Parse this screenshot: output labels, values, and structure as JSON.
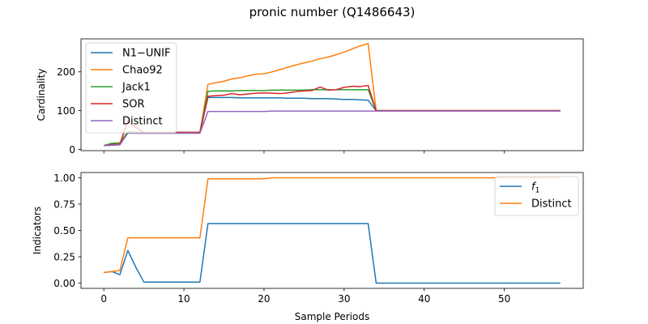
{
  "figure_title": "pronic number (Q1486643)",
  "chart_data": [
    {
      "type": "line",
      "ylabel": "Cardinality",
      "xlabel": "",
      "xlim": [
        -2.85,
        59.85
      ],
      "ylim": [
        -3,
        285
      ],
      "xticks": [
        0,
        10,
        20,
        30,
        40,
        50
      ],
      "xtick_labels_shown": false,
      "yticks": [
        0,
        100,
        200
      ],
      "ytick_labels": [
        "0",
        "100",
        "200"
      ],
      "legend_position": "upper left",
      "series": [
        {
          "name": "N1−UNIF",
          "color": "#1f77b4",
          "x": [
            0,
            1,
            2,
            3,
            4,
            5,
            6,
            7,
            8,
            9,
            10,
            11,
            12,
            13,
            14,
            15,
            16,
            17,
            18,
            19,
            20,
            21,
            22,
            23,
            24,
            25,
            26,
            27,
            28,
            29,
            30,
            31,
            32,
            33,
            34,
            35,
            36,
            37,
            38,
            39,
            40,
            41,
            42,
            43,
            44,
            45,
            46,
            47,
            48,
            49,
            50,
            51,
            52,
            53,
            54,
            55,
            56,
            57
          ],
          "y": [
            10,
            11,
            12,
            44,
            44,
            44,
            44,
            44,
            44,
            44,
            44,
            44,
            44,
            134,
            134,
            134,
            134,
            133,
            133,
            133,
            133,
            133,
            133,
            132,
            132,
            132,
            131,
            131,
            131,
            130,
            129,
            129,
            128,
            127,
            100,
            100,
            100,
            100,
            100,
            100,
            100,
            100,
            100,
            100,
            100,
            100,
            100,
            100,
            100,
            100,
            100,
            100,
            100,
            100,
            100,
            100,
            100,
            100
          ]
        },
        {
          "name": "Chao92",
          "color": "#ff7f0e",
          "x": [
            0,
            1,
            2,
            3,
            4,
            5,
            6,
            7,
            8,
            9,
            10,
            11,
            12,
            13,
            14,
            15,
            16,
            17,
            18,
            19,
            20,
            21,
            22,
            23,
            24,
            25,
            26,
            27,
            28,
            29,
            30,
            31,
            32,
            33,
            34,
            35,
            36,
            37,
            38,
            39,
            40,
            41,
            42,
            43,
            44,
            45,
            46,
            47,
            48,
            49,
            50,
            51,
            52,
            53,
            54,
            55,
            56,
            57
          ],
          "y": [
            10,
            12,
            14,
            75,
            60,
            44,
            44,
            44,
            44,
            44,
            44,
            44,
            44,
            168,
            172,
            176,
            182,
            185,
            190,
            194,
            195,
            200,
            206,
            212,
            218,
            223,
            228,
            234,
            238,
            244,
            251,
            259,
            267,
            273,
            100,
            100,
            100,
            100,
            100,
            100,
            100,
            100,
            100,
            100,
            100,
            100,
            100,
            100,
            100,
            100,
            100,
            100,
            100,
            100,
            100,
            100,
            100,
            100
          ]
        },
        {
          "name": "Jack1",
          "color": "#2ca02c",
          "x": [
            0,
            1,
            2,
            3,
            4,
            5,
            6,
            7,
            8,
            9,
            10,
            11,
            12,
            13,
            14,
            15,
            16,
            17,
            18,
            19,
            20,
            21,
            22,
            23,
            24,
            25,
            26,
            27,
            28,
            29,
            30,
            31,
            32,
            33,
            34,
            35,
            36,
            37,
            38,
            39,
            40,
            41,
            42,
            43,
            44,
            45,
            46,
            47,
            48,
            49,
            50,
            51,
            52,
            53,
            54,
            55,
            56,
            57
          ],
          "y": [
            10,
            16,
            17,
            46,
            44,
            44,
            44,
            44,
            44,
            44,
            44,
            44,
            44,
            150,
            151,
            151,
            151,
            152,
            152,
            152,
            152,
            153,
            153,
            153,
            153,
            153,
            154,
            154,
            154,
            154,
            154,
            154,
            154,
            154,
            100,
            100,
            100,
            100,
            100,
            100,
            100,
            100,
            100,
            100,
            100,
            100,
            100,
            100,
            100,
            100,
            100,
            100,
            100,
            100,
            100,
            100,
            100,
            100
          ]
        },
        {
          "name": "SOR",
          "color": "#d62728",
          "x": [
            0,
            1,
            2,
            3,
            4,
            5,
            6,
            7,
            8,
            9,
            10,
            11,
            12,
            13,
            14,
            15,
            16,
            17,
            18,
            19,
            20,
            21,
            22,
            23,
            24,
            25,
            26,
            27,
            28,
            29,
            30,
            31,
            32,
            33,
            34,
            35,
            36,
            37,
            38,
            39,
            40,
            41,
            42,
            43,
            44,
            45,
            46,
            47,
            48,
            49,
            50,
            51,
            52,
            53,
            54,
            55,
            56,
            57
          ],
          "y": [
            10,
            13,
            14,
            73,
            56,
            44,
            44,
            44,
            44,
            44,
            44,
            44,
            44,
            137,
            139,
            140,
            144,
            141,
            143,
            145,
            146,
            145,
            144,
            146,
            149,
            151,
            152,
            161,
            153,
            154,
            160,
            163,
            162,
            165,
            100,
            100,
            100,
            100,
            100,
            100,
            100,
            100,
            100,
            100,
            100,
            100,
            100,
            100,
            100,
            100,
            100,
            100,
            100,
            100,
            100,
            100,
            100,
            100
          ]
        },
        {
          "name": "Distinct",
          "color": "#9467bd",
          "x": [
            0,
            1,
            2,
            3,
            4,
            5,
            6,
            7,
            8,
            9,
            10,
            11,
            12,
            13,
            14,
            15,
            16,
            17,
            18,
            19,
            20,
            21,
            22,
            23,
            24,
            25,
            26,
            27,
            28,
            29,
            30,
            31,
            32,
            33,
            34,
            35,
            36,
            37,
            38,
            39,
            40,
            41,
            42,
            43,
            44,
            45,
            46,
            47,
            48,
            49,
            50,
            51,
            52,
            53,
            54,
            55,
            56,
            57
          ],
          "y": [
            10,
            11,
            12,
            42,
            42,
            42,
            42,
            42,
            42,
            42,
            42,
            42,
            42,
            98,
            98,
            98,
            98,
            98,
            98,
            98,
            98,
            99,
            99,
            99,
            99,
            99,
            99,
            99,
            99,
            99,
            99,
            99,
            99,
            99,
            99,
            99,
            99,
            99,
            99,
            99,
            99,
            99,
            99,
            99,
            99,
            99,
            99,
            99,
            99,
            99,
            99,
            99,
            99,
            99,
            99,
            99,
            99,
            99
          ]
        }
      ]
    },
    {
      "type": "line",
      "ylabel": "Indicators",
      "xlabel": "Sample Periods",
      "xlim": [
        -2.85,
        59.85
      ],
      "ylim": [
        -0.05,
        1.05
      ],
      "xticks": [
        0,
        10,
        20,
        30,
        40,
        50
      ],
      "xtick_labels": [
        "0",
        "10",
        "20",
        "30",
        "40",
        "50"
      ],
      "yticks": [
        0,
        0.25,
        0.5,
        0.75,
        1.0
      ],
      "ytick_labels": [
        "0.00",
        "0.25",
        "0.50",
        "0.75",
        "1.00"
      ],
      "legend_position": "upper right",
      "series": [
        {
          "name": "f",
          "name_subscript": "1",
          "color": "#1f77b4",
          "x": [
            0,
            1,
            2,
            3,
            4,
            5,
            6,
            7,
            8,
            9,
            10,
            11,
            12,
            13,
            14,
            15,
            16,
            17,
            18,
            19,
            20,
            21,
            22,
            23,
            24,
            25,
            26,
            27,
            28,
            29,
            30,
            31,
            32,
            33,
            34,
            35,
            36,
            37,
            38,
            39,
            40,
            41,
            42,
            43,
            44,
            45,
            46,
            47,
            48,
            49,
            50,
            51,
            52,
            53,
            54,
            55,
            56,
            57
          ],
          "y": [
            0.1,
            0.11,
            0.08,
            0.31,
            0.15,
            0.01,
            0.01,
            0.01,
            0.01,
            0.01,
            0.01,
            0.01,
            0.01,
            0.565,
            0.565,
            0.565,
            0.565,
            0.565,
            0.565,
            0.565,
            0.565,
            0.565,
            0.565,
            0.565,
            0.565,
            0.565,
            0.565,
            0.565,
            0.565,
            0.565,
            0.565,
            0.565,
            0.565,
            0.565,
            0.0,
            0.0,
            0.0,
            0.0,
            0.0,
            0.0,
            0.0,
            0.0,
            0.0,
            0.0,
            0.0,
            0.0,
            0.0,
            0.0,
            0.0,
            0.0,
            0.0,
            0.0,
            0.0,
            0.0,
            0.0,
            0.0,
            0.0,
            0.0
          ]
        },
        {
          "name": "Distinct",
          "color": "#ff7f0e",
          "x": [
            0,
            1,
            2,
            3,
            4,
            5,
            6,
            7,
            8,
            9,
            10,
            11,
            12,
            13,
            14,
            15,
            16,
            17,
            18,
            19,
            20,
            21,
            22,
            23,
            24,
            25,
            26,
            27,
            28,
            29,
            30,
            31,
            32,
            33,
            34,
            35,
            36,
            37,
            38,
            39,
            40,
            41,
            42,
            43,
            44,
            45,
            46,
            47,
            48,
            49,
            50,
            51,
            52,
            53,
            54,
            55,
            56,
            57
          ],
          "y": [
            0.1,
            0.11,
            0.12,
            0.43,
            0.43,
            0.43,
            0.43,
            0.43,
            0.43,
            0.43,
            0.43,
            0.43,
            0.43,
            0.99,
            0.99,
            0.99,
            0.99,
            0.99,
            0.99,
            0.99,
            0.99,
            1.0,
            1.0,
            1.0,
            1.0,
            1.0,
            1.0,
            1.0,
            1.0,
            1.0,
            1.0,
            1.0,
            1.0,
            1.0,
            1.0,
            1.0,
            1.0,
            1.0,
            1.0,
            1.0,
            1.0,
            1.0,
            1.0,
            1.0,
            1.0,
            1.0,
            1.0,
            1.0,
            1.0,
            1.0,
            1.0,
            1.0,
            1.0,
            1.0,
            1.0,
            1.0,
            1.0,
            1.0
          ]
        }
      ]
    }
  ]
}
